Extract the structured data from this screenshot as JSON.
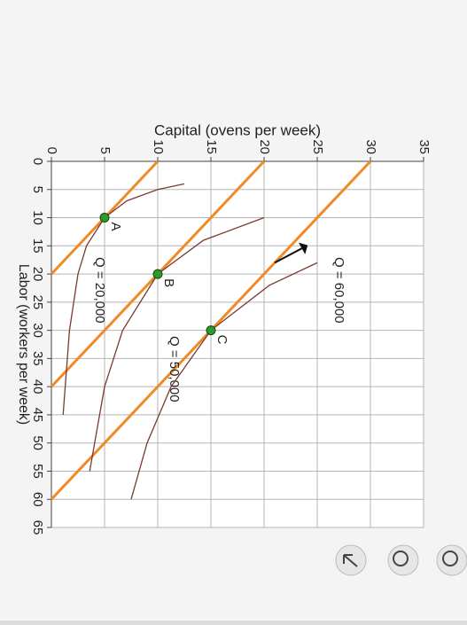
{
  "chart_data": {
    "type": "line",
    "xlabel": "Labor (workers per week)",
    "ylabel": "Capital (ovens per week)",
    "xlim": [
      0,
      65
    ],
    "xticks": [
      0,
      5,
      10,
      15,
      20,
      25,
      30,
      35,
      40,
      45,
      50,
      55,
      60,
      65
    ],
    "ylim": [
      0,
      35
    ],
    "yticks": [
      0,
      5,
      10,
      15,
      20,
      25,
      30,
      35
    ],
    "grid": true,
    "series": [
      {
        "name": "Q = 20,000",
        "color": "#7a3b2e",
        "x": [
          4,
          5,
          7,
          10,
          15,
          20,
          30,
          45
        ],
        "values": [
          12.5,
          10,
          7.1,
          5,
          3.3,
          2.5,
          1.7,
          1.1
        ]
      },
      {
        "name": "Q = 50,000",
        "color": "#7a3b2e",
        "x": [
          10,
          14,
          20,
          30,
          40,
          55
        ],
        "values": [
          20,
          14.3,
          10,
          6.7,
          5,
          3.6
        ]
      },
      {
        "name": "Q = 60,000",
        "color": "#7a3b2e",
        "x": [
          18,
          22,
          30,
          40,
          50,
          60
        ],
        "values": [
          25,
          20.5,
          15,
          11.25,
          9,
          7.5
        ]
      }
    ],
    "isocost": [
      {
        "color": "#f08a24",
        "x": [
          0,
          20
        ],
        "values": [
          10,
          0
        ]
      },
      {
        "color": "#f08a24",
        "x": [
          0,
          40
        ],
        "values": [
          20,
          0
        ]
      },
      {
        "color": "#f08a24",
        "x": [
          0,
          60
        ],
        "values": [
          30,
          0
        ]
      }
    ],
    "points": {
      "labels": [
        "A",
        "B",
        "C"
      ],
      "x": [
        10,
        20,
        30
      ],
      "values": [
        5,
        10,
        15
      ],
      "color": "#2e9a2e"
    }
  }
}
